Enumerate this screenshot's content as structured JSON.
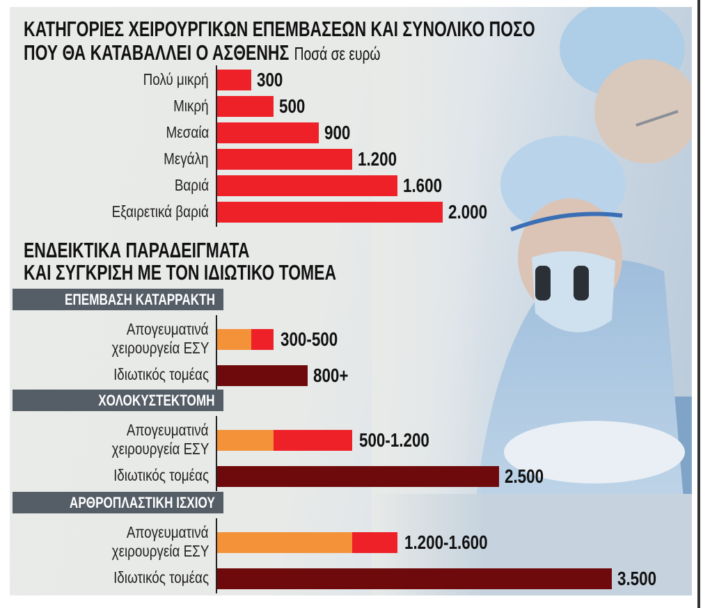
{
  "title_line1": "ΚΑΤΗΓΟΡΙΕΣ ΧΕΙΡΟΥΡΓΙΚΩΝ ΕΠΕΜΒΑΣΕΩΝ ΚΑΙ ΣΥΝΟΛΙΚΟ ΠΟΣΟ",
  "title_line2": "ΠΟΥ ΘΑ ΚΑΤΑΒΑΛΛΕΙ Ο ΑΣΘΕΝΗΣ",
  "units": "Ποσά σε ευρώ",
  "section2_line1": "ΕΝΔΕΙΚΤΙΚΑ ΠΑΡΑΔΕΙΓΜΑΤΑ",
  "section2_line2": "ΚΑΙ ΣΥΓΚΡΙΣΗ ΜΕ ΤΟΝ ΙΔΙΩΤΙΚΟ ΤΟΜΕΑ",
  "colors": {
    "red": "#ee2128",
    "orange": "#f4923a",
    "maroon": "#6e0a0b",
    "band": "#555d66"
  },
  "chart_data": [
    {
      "type": "bar",
      "title": "ΚΑΤΗΓΟΡΙΕΣ ΧΕΙΡΟΥΡΓΙΚΩΝ ΕΠΕΜΒΑΣΕΩΝ ΚΑΙ ΣΥΝΟΛΙΚΟ ΠΟΣΟ ΠΟΥ ΘΑ ΚΑΤΑΒΑΛΛΕΙ Ο ΑΣΘΕΝΗΣ",
      "subtitle": "Ποσά σε ευρώ",
      "orientation": "horizontal",
      "categories": [
        "Πολύ μικρή",
        "Μικρή",
        "Μεσαία",
        "Μεγάλη",
        "Βαριά",
        "Εξαιρετικά βαριά"
      ],
      "values": [
        300,
        500,
        900,
        1200,
        1600,
        2000
      ],
      "value_labels": [
        "300",
        "500",
        "900",
        "1.200",
        "1.600",
        "2.000"
      ]
    },
    {
      "type": "bar",
      "title": "ΕΝΔΕΙΚΤΙΚΑ ΠΑΡΑΔΕΙΓΜΑΤΑ ΚΑΙ ΣΥΓΚΡΙΣΗ ΜΕ ΤΟΝ ΙΔΙΩΤΙΚΟ ΤΟΜΕΑ",
      "orientation": "horizontal",
      "groups": [
        {
          "name": "ΕΠΕΜΒΑΣΗ ΚΑΤΑΡΡΑΚΤΗ",
          "rows": [
            {
              "label": [
                "Απογευματινά",
                "χειρουργεία ΕΣΥ"
              ],
              "kind": "range",
              "min": 300,
              "max": 500,
              "value_label": "300-500"
            },
            {
              "label": [
                "Ιδιωτικός τομέας"
              ],
              "kind": "single",
              "value": 800,
              "value_label": "800+"
            }
          ]
        },
        {
          "name": "ΧΟΛΟΚΥΣΤΕΚΤΟΜΗ",
          "rows": [
            {
              "label": [
                "Απογευματινά",
                "χειρουργεία ΕΣΥ"
              ],
              "kind": "range",
              "min": 500,
              "max": 1200,
              "value_label": "500-1.200"
            },
            {
              "label": [
                "Ιδιωτικός τομέας"
              ],
              "kind": "single",
              "value": 2500,
              "value_label": "2.500"
            }
          ]
        },
        {
          "name": "ΑΡΘΡΟΠΛΑΣΤΙΚΗ ΙΣΧΙΟΥ",
          "rows": [
            {
              "label": [
                "Απογευματινά",
                "χειρουργεία ΕΣΥ"
              ],
              "kind": "range",
              "min": 1200,
              "max": 1600,
              "value_label": "1.200-1.600"
            },
            {
              "label": [
                "Ιδιωτικός τομέας"
              ],
              "kind": "single",
              "value": 3500,
              "value_label": "3.500"
            }
          ]
        }
      ]
    }
  ]
}
